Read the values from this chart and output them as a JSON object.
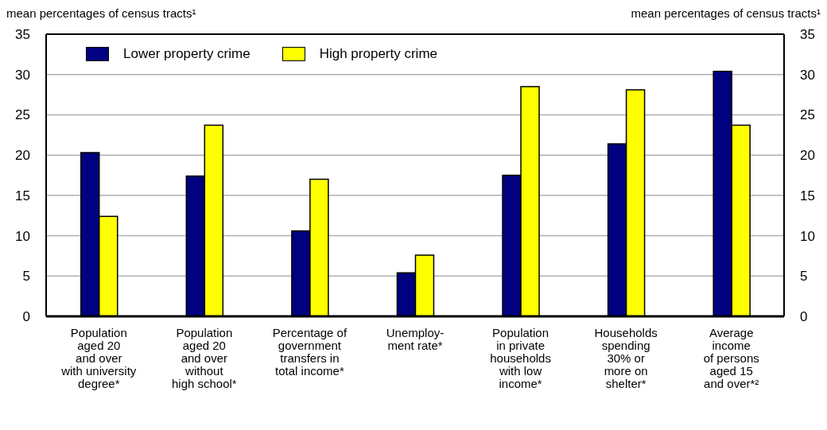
{
  "chart_data": {
    "type": "bar",
    "ylabel": "mean percentages of census tracts¹",
    "y2label": "mean percentages of census tracts¹",
    "categories": [
      "Population\naged 20\nand over\nwith university\ndegree*",
      "Population\naged 20\nand over\nwithout\nhigh school*",
      "Percentage of\ngovernment\ntransfers in\ntotal income*",
      "Unemploy-\nment rate*",
      "Population\nin private\nhouseholds\nwith low\nincome*",
      "Households\nspending\n30% or\nmore on\nshelter*",
      "Average\nincome\nof persons\naged 15\nand over*²"
    ],
    "series": [
      {
        "name": "Lower property crime",
        "color": "#000080",
        "values": [
          20.3,
          17.4,
          10.6,
          5.4,
          17.5,
          21.4,
          30.4
        ]
      },
      {
        "name": "High property crime",
        "color": "#ffff00",
        "values": [
          12.4,
          23.7,
          17.0,
          7.6,
          28.5,
          28.1,
          23.7
        ]
      }
    ],
    "ylim": [
      0,
      35
    ],
    "yticks": [
      0,
      5,
      10,
      15,
      20,
      25,
      30,
      35
    ],
    "y2lim": [
      0,
      35
    ],
    "y2ticks": [
      0,
      5,
      10,
      15,
      20,
      25,
      30,
      35
    ],
    "grid": "y",
    "legend": "top left"
  }
}
